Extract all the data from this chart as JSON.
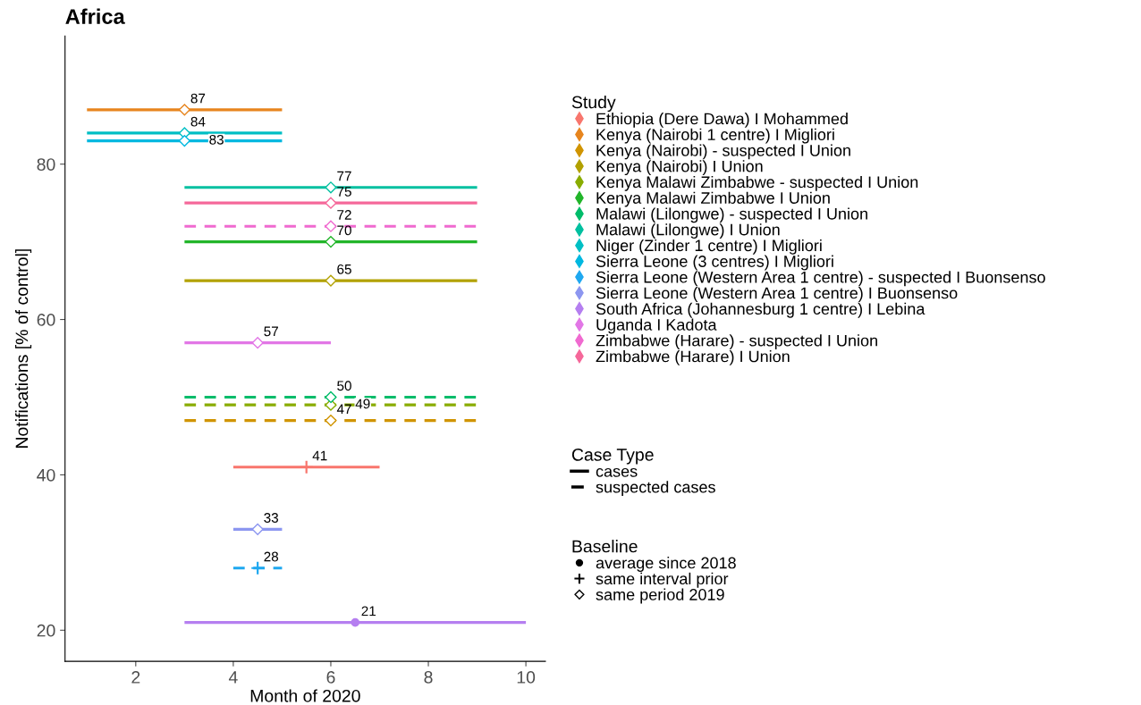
{
  "chart_data": {
    "type": "scatter",
    "title": "Africa",
    "xlabel": "Month of 2020",
    "ylabel": "Notifications [% of control]",
    "legend_title": "Study",
    "legend": "right",
    "xlim": [
      0.55,
      10.4
    ],
    "xticks": [
      2,
      4,
      6,
      8,
      10
    ],
    "ylim": [
      16,
      96.5
    ],
    "yticks": [
      20,
      40,
      60,
      80
    ],
    "grid": false,
    "data_labels": true,
    "annotations": [
      "Case Type",
      "cases",
      "suspected cases",
      "Baseline",
      "average since 2018",
      "same interval prior",
      "same period 2019"
    ],
    "series": [
      {
        "name": "Ethiopia (Dere Dawa) I Mohammed",
        "color": "#f8766d",
        "x": [
          5.5
        ],
        "values": [
          41
        ],
        "xerrors": [
          [
            4,
            7
          ]
        ],
        "line_style": "solid",
        "marker": "cross"
      },
      {
        "name": "Kenya (Nairobi 1 centre) I Migliori",
        "color": "#e7851e",
        "x": [
          3
        ],
        "values": [
          87
        ],
        "xerrors": [
          [
            1,
            5
          ]
        ],
        "line_style": "solid",
        "marker": "diamond"
      },
      {
        "name": "Kenya (Nairobi) - suspected I Union",
        "color": "#d09400",
        "x": [
          6
        ],
        "values": [
          47
        ],
        "xerrors": [
          [
            3,
            9
          ]
        ],
        "line_style": "dashed",
        "marker": "diamond"
      },
      {
        "name": "Kenya (Nairobi) I Union",
        "color": "#b2a100",
        "x": [
          6
        ],
        "values": [
          65
        ],
        "xerrors": [
          [
            3,
            9
          ]
        ],
        "line_style": "solid",
        "marker": "diamond"
      },
      {
        "name": "Kenya Malawi Zimbabwe - suspected I Union",
        "color": "#89ac00",
        "x": [
          6
        ],
        "values": [
          49
        ],
        "xerrors": [
          [
            3,
            9
          ]
        ],
        "line_style": "dashed",
        "marker": "diamond"
      },
      {
        "name": "Kenya Malawi Zimbabwe I Union",
        "color": "#22b52a",
        "x": [
          6
        ],
        "values": [
          70
        ],
        "xerrors": [
          [
            3,
            9
          ]
        ],
        "line_style": "solid",
        "marker": "diamond"
      },
      {
        "name": "Malawi (Lilongwe) - suspected I Union",
        "color": "#00bc6a",
        "x": [
          6
        ],
        "values": [
          50
        ],
        "xerrors": [
          [
            3,
            9
          ]
        ],
        "line_style": "dashed",
        "marker": "diamond"
      },
      {
        "name": "Malawi (Lilongwe) I Union",
        "color": "#00c0a0",
        "x": [
          6
        ],
        "values": [
          77
        ],
        "xerrors": [
          [
            3,
            9
          ]
        ],
        "line_style": "solid",
        "marker": "diamond"
      },
      {
        "name": "Niger (Zinder 1 centre) I Migliori",
        "color": "#00bfc4",
        "x": [
          3
        ],
        "values": [
          84
        ],
        "xerrors": [
          [
            1,
            5
          ]
        ],
        "line_style": "solid",
        "marker": "diamond"
      },
      {
        "name": "Sierra Leone (3 centres) I Migliori",
        "color": "#00b8e0",
        "x": [
          3
        ],
        "values": [
          83
        ],
        "xerrors": [
          [
            1,
            5
          ]
        ],
        "line_style": "solid",
        "marker": "diamond"
      },
      {
        "name": "Sierra Leone (Western Area 1 centre) - suspected I Buonsenso",
        "color": "#1fa8f0",
        "x": [
          4.5
        ],
        "values": [
          28
        ],
        "xerrors": [
          [
            4,
            5
          ]
        ],
        "line_style": "dashed",
        "marker": "cross"
      },
      {
        "name": "Sierra Leone (Western Area 1 centre) I Buonsenso",
        "color": "#8c96f0",
        "x": [
          4.5
        ],
        "values": [
          33
        ],
        "xerrors": [
          [
            4,
            5
          ]
        ],
        "line_style": "solid",
        "marker": "diamond"
      },
      {
        "name": "South Africa (Johannesburg 1 centre) I Lebina",
        "color": "#b57ff0",
        "x": [
          6.5
        ],
        "values": [
          21
        ],
        "xerrors": [
          [
            3,
            10
          ]
        ],
        "line_style": "solid",
        "marker": "circle"
      },
      {
        "name": "Uganda I Kadota",
        "color": "#e277e6",
        "x": [
          4.5
        ],
        "values": [
          57
        ],
        "xerrors": [
          [
            3,
            6
          ]
        ],
        "line_style": "solid",
        "marker": "diamond"
      },
      {
        "name": "Zimbabwe (Harare) - suspected I Union",
        "color": "#f06ad0",
        "x": [
          6
        ],
        "values": [
          72
        ],
        "xerrors": [
          [
            3,
            9
          ]
        ],
        "line_style": "dashed",
        "marker": "diamond"
      },
      {
        "name": "Zimbabwe (Harare) I Union",
        "color": "#f5689a",
        "x": [
          6
        ],
        "values": [
          75
        ],
        "xerrors": [
          [
            3,
            9
          ]
        ],
        "line_style": "solid",
        "marker": "diamond"
      }
    ]
  }
}
